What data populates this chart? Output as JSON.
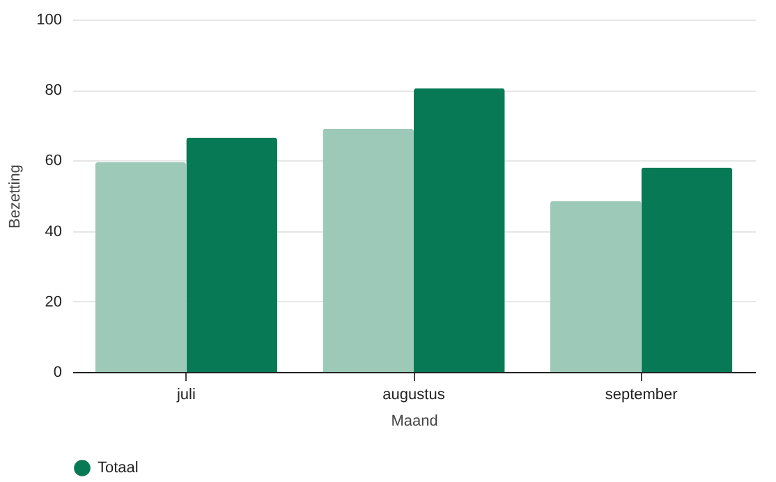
{
  "chart_data": {
    "type": "bar",
    "xlabel": "Maand",
    "ylabel": "Bezetting",
    "categories": [
      "juli",
      "augustus",
      "september"
    ],
    "series": [
      {
        "color": "#9cc9b8",
        "values": [
          59.5,
          69,
          48.5
        ]
      },
      {
        "name": "Totaal",
        "color": "#077a55",
        "values": [
          66.5,
          80.5,
          58
        ]
      }
    ],
    "ylim": [
      0,
      100
    ],
    "yticks": [
      0,
      20,
      40,
      60,
      80,
      100
    ],
    "grid": "y",
    "legend": "bottom"
  }
}
